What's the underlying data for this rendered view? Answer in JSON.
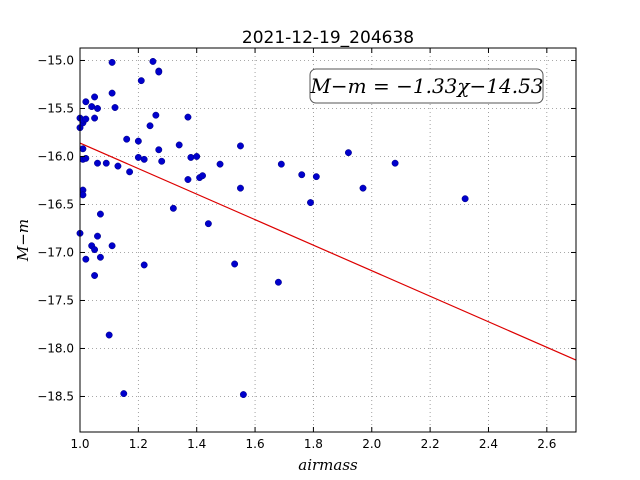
{
  "chart_data": {
    "type": "scatter",
    "title": "2021-12-19_204638",
    "xlabel": "airmass",
    "ylabel": "M−m",
    "xlim": [
      1.0,
      2.7
    ],
    "ylim": [
      -18.87,
      -14.87
    ],
    "y_inverted": true,
    "grid": true,
    "xticks": [
      1.0,
      1.2,
      1.4,
      1.6,
      1.8,
      2.0,
      2.2,
      2.4,
      2.6
    ],
    "xtick_labels": [
      "1.0",
      "1.2",
      "1.4",
      "1.6",
      "1.8",
      "2.0",
      "2.2",
      "2.4",
      "2.6"
    ],
    "yticks": [
      -15.0,
      -15.5,
      -16.0,
      -16.5,
      -17.0,
      -17.5,
      -18.0,
      -18.5
    ],
    "ytick_labels": [
      "−15.0",
      "−15.5",
      "−16.0",
      "−16.5",
      "−17.0",
      "−17.5",
      "−18.0",
      "−18.5"
    ],
    "fit": {
      "slope": -1.33,
      "intercept": -14.53,
      "label": "M−m = −1.33χ−14.53",
      "color": "#dd0000"
    },
    "point_color": "#0000cc",
    "points": [
      [
        1.0,
        -15.6
      ],
      [
        1.0,
        -15.7
      ],
      [
        1.01,
        -15.65
      ],
      [
        1.01,
        -15.62
      ],
      [
        1.0,
        -16.8
      ],
      [
        1.01,
        -15.92
      ],
      [
        1.01,
        -16.03
      ],
      [
        1.01,
        -16.35
      ],
      [
        1.01,
        -16.4
      ],
      [
        1.02,
        -15.61
      ],
      [
        1.02,
        -15.43
      ],
      [
        1.02,
        -16.02
      ],
      [
        1.02,
        -17.07
      ],
      [
        1.04,
        -15.48
      ],
      [
        1.04,
        -16.93
      ],
      [
        1.05,
        -15.38
      ],
      [
        1.05,
        -15.6
      ],
      [
        1.05,
        -16.97
      ],
      [
        1.05,
        -17.24
      ],
      [
        1.06,
        -15.5
      ],
      [
        1.06,
        -16.07
      ],
      [
        1.06,
        -16.83
      ],
      [
        1.07,
        -16.6
      ],
      [
        1.07,
        -17.05
      ],
      [
        1.09,
        -16.07
      ],
      [
        1.1,
        -17.86
      ],
      [
        1.11,
        -15.02
      ],
      [
        1.11,
        -15.34
      ],
      [
        1.11,
        -16.93
      ],
      [
        1.12,
        -15.49
      ],
      [
        1.13,
        -16.1
      ],
      [
        1.15,
        -18.47
      ],
      [
        1.16,
        -15.82
      ],
      [
        1.17,
        -16.16
      ],
      [
        1.2,
        -15.84
      ],
      [
        1.2,
        -16.01
      ],
      [
        1.21,
        -15.21
      ],
      [
        1.22,
        -16.03
      ],
      [
        1.22,
        -17.13
      ],
      [
        1.24,
        -15.68
      ],
      [
        1.25,
        -15.01
      ],
      [
        1.26,
        -15.57
      ],
      [
        1.27,
        -15.11
      ],
      [
        1.27,
        -15.12
      ],
      [
        1.27,
        -15.93
      ],
      [
        1.28,
        -16.05
      ],
      [
        1.32,
        -16.54
      ],
      [
        1.34,
        -15.88
      ],
      [
        1.37,
        -15.59
      ],
      [
        1.37,
        -16.24
      ],
      [
        1.38,
        -16.01
      ],
      [
        1.4,
        -16.0
      ],
      [
        1.41,
        -16.22
      ],
      [
        1.42,
        -16.2
      ],
      [
        1.44,
        -16.7
      ],
      [
        1.48,
        -16.08
      ],
      [
        1.53,
        -17.12
      ],
      [
        1.55,
        -15.89
      ],
      [
        1.55,
        -16.33
      ],
      [
        1.56,
        -18.48
      ],
      [
        1.68,
        -17.31
      ],
      [
        1.69,
        -16.08
      ],
      [
        1.76,
        -16.19
      ],
      [
        1.79,
        -16.48
      ],
      [
        1.81,
        -16.21
      ],
      [
        1.92,
        -15.96
      ],
      [
        1.97,
        -16.33
      ],
      [
        2.08,
        -16.07
      ],
      [
        2.32,
        -16.44
      ]
    ]
  }
}
